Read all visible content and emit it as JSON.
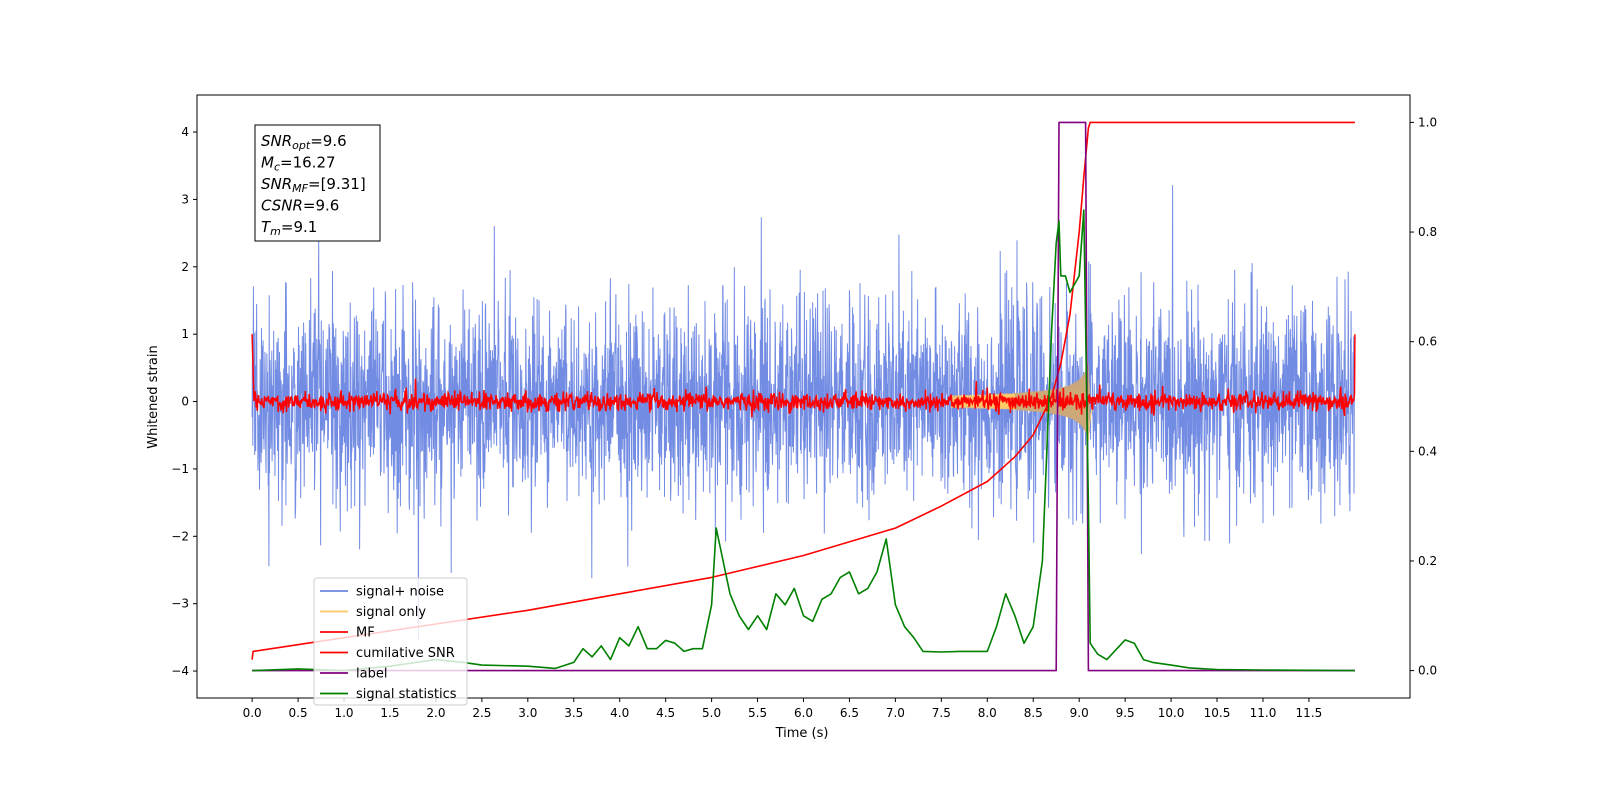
{
  "chart_data": {
    "type": "line",
    "xlabel": "Time (s)",
    "ylabel": "Whitened strain",
    "xlim": [
      -0.6,
      12.6
    ],
    "ylim": [
      -4.4,
      4.55
    ],
    "y2lim": [
      -0.05,
      1.05
    ],
    "xticks": [
      "0.0",
      "0.5",
      "1.0",
      "1.5",
      "2.0",
      "2.5",
      "3.0",
      "3.5",
      "4.0",
      "4.5",
      "5.0",
      "5.5",
      "6.0",
      "6.5",
      "7.0",
      "7.5",
      "8.0",
      "8.5",
      "9.0",
      "9.5",
      "10.0",
      "10.5",
      "11.0",
      "11.5"
    ],
    "yticks": [
      "4",
      "3",
      "2",
      "1",
      "0",
      "−1",
      "−2",
      "−3",
      "−4"
    ],
    "y2ticks": [
      "1.0",
      "0.8",
      "0.6",
      "0.4",
      "0.2",
      "0.0"
    ],
    "legend_position": "lower-left",
    "annotation": [
      {
        "base": "SNR",
        "sub": "opt",
        "value": "=9.6"
      },
      {
        "base": "M",
        "sub": "c",
        "value": "=16.27"
      },
      {
        "base": "SNR",
        "sub": "MF",
        "value": "=[9.31]"
      },
      {
        "base": "CSNR",
        "sub": "",
        "value": "=9.6"
      },
      {
        "base": "T",
        "sub": "m",
        "value": "=9.1"
      }
    ],
    "series": [
      {
        "name": "signal+ noise",
        "color": "#6b86e2",
        "axis": "left",
        "kind": "noise",
        "typical_abs": 1.0,
        "peak_abs": 4.1,
        "t_range": [
          0,
          12
        ]
      },
      {
        "name": "signal only",
        "color": "#ffc966",
        "axis": "left",
        "kind": "chirp",
        "merger_time": 9.1,
        "peak_amplitude": 0.6
      },
      {
        "name": "MF",
        "color": "#ff0000",
        "axis": "left",
        "kind": "noise",
        "typical_abs": 0.12,
        "peak_abs": 0.35,
        "t_range": [
          0,
          12
        ]
      },
      {
        "name": "cumilative SNR",
        "color": "#ff0000",
        "axis": "right",
        "x": [
          0,
          0.01,
          1,
          2,
          3,
          4,
          5,
          6,
          7,
          7.5,
          8,
          8.3,
          8.5,
          8.7,
          8.8,
          8.9,
          9.0,
          9.05,
          9.1,
          9.12,
          12
        ],
        "y": [
          0.02,
          0.035,
          0.06,
          0.085,
          0.11,
          0.14,
          0.17,
          0.21,
          0.26,
          0.3,
          0.345,
          0.39,
          0.43,
          0.5,
          0.56,
          0.65,
          0.8,
          0.9,
          0.99,
          1.0,
          1.0
        ]
      },
      {
        "name": "label",
        "color": "#800080",
        "axis": "right",
        "x": [
          0,
          8.75,
          8.78,
          9.07,
          9.1,
          12
        ],
        "y": [
          0,
          0,
          1,
          1,
          0,
          0
        ]
      },
      {
        "name": "signal statistics",
        "color": "#008000",
        "axis": "right",
        "x": [
          0,
          0.5,
          1,
          1.5,
          2,
          2.3,
          2.5,
          3,
          3.3,
          3.5,
          3.6,
          3.7,
          3.8,
          3.9,
          4.0,
          4.1,
          4.2,
          4.3,
          4.4,
          4.5,
          4.6,
          4.7,
          4.8,
          4.9,
          5.0,
          5.05,
          5.1,
          5.2,
          5.3,
          5.4,
          5.5,
          5.6,
          5.7,
          5.8,
          5.9,
          6.0,
          6.1,
          6.2,
          6.3,
          6.4,
          6.5,
          6.6,
          6.7,
          6.8,
          6.9,
          7.0,
          7.1,
          7.2,
          7.3,
          7.5,
          7.7,
          8.0,
          8.1,
          8.2,
          8.3,
          8.4,
          8.5,
          8.6,
          8.7,
          8.75,
          8.78,
          8.8,
          8.85,
          8.9,
          9.0,
          9.05,
          9.1,
          9.12,
          9.2,
          9.3,
          9.5,
          9.6,
          9.7,
          9.8,
          10,
          10.2,
          10.5,
          11,
          12
        ],
        "y": [
          0,
          0.003,
          0,
          0.008,
          0.02,
          0.015,
          0.01,
          0.008,
          0.004,
          0.015,
          0.04,
          0.025,
          0.045,
          0.02,
          0.06,
          0.045,
          0.08,
          0.04,
          0.04,
          0.055,
          0.05,
          0.035,
          0.04,
          0.04,
          0.12,
          0.26,
          0.22,
          0.14,
          0.1,
          0.075,
          0.1,
          0.075,
          0.14,
          0.12,
          0.15,
          0.1,
          0.09,
          0.13,
          0.14,
          0.17,
          0.18,
          0.14,
          0.15,
          0.18,
          0.24,
          0.12,
          0.08,
          0.06,
          0.035,
          0.034,
          0.035,
          0.035,
          0.08,
          0.14,
          0.1,
          0.05,
          0.08,
          0.2,
          0.62,
          0.78,
          0.82,
          0.72,
          0.72,
          0.69,
          0.72,
          0.84,
          0.3,
          0.05,
          0.03,
          0.02,
          0.056,
          0.05,
          0.02,
          0.015,
          0.01,
          0.005,
          0.002,
          0.001,
          0
        ]
      }
    ]
  }
}
